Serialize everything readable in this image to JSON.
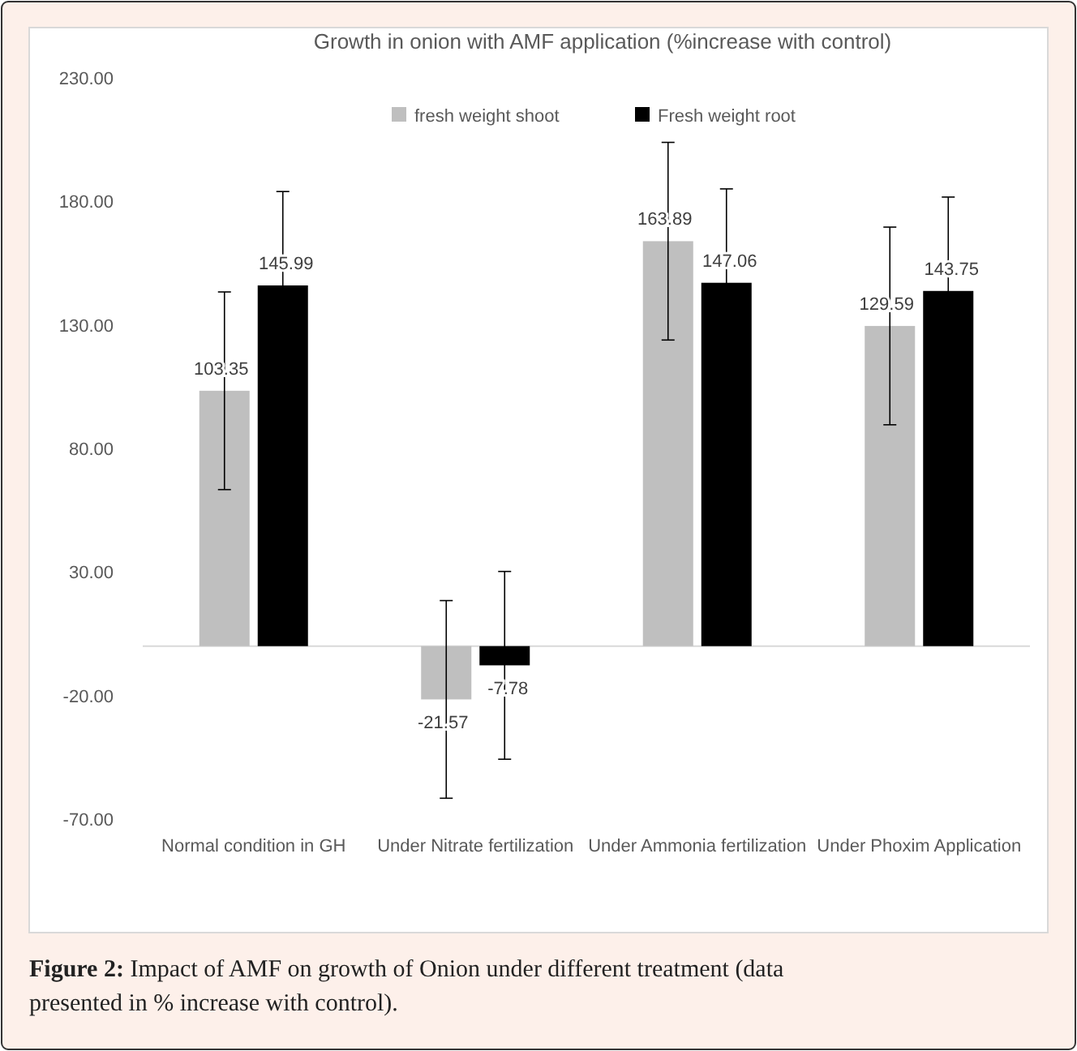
{
  "chart_data": {
    "type": "bar",
    "title": "Growth in onion with AMF application (%increase with control)",
    "categories": [
      "Normal condition in GH",
      "Under Nitrate fertilization",
      "Under Ammonia fertilization",
      "Under Phoxim Application"
    ],
    "series": [
      {
        "name": "fresh weight shoot",
        "color": "#bfbfbf",
        "values": [
          103.35,
          -21.57,
          163.89,
          129.59
        ],
        "errors": [
          40,
          40,
          40,
          40
        ]
      },
      {
        "name": "Fresh weight root",
        "color": "#000000",
        "values": [
          145.99,
          -7.78,
          147.06,
          143.75
        ],
        "errors": [
          38,
          38,
          38,
          38
        ]
      }
    ],
    "ylim": [
      -70,
      230
    ],
    "yticks": [
      {
        "value": -70,
        "label": "-70.00"
      },
      {
        "value": -20,
        "label": "-20.00"
      },
      {
        "value": 30,
        "label": "30.00"
      },
      {
        "value": 80,
        "label": "80.00"
      },
      {
        "value": 130,
        "label": "130.00"
      },
      {
        "value": 180,
        "label": "180.00"
      },
      {
        "value": 230,
        "label": "230.00"
      }
    ],
    "data_labels": true,
    "legend": "top",
    "grid": false,
    "annotations": [
      "Figure 2: Impact of AMF on growth of Onion under different treatment (data presented in % increase with control)."
    ]
  }
}
